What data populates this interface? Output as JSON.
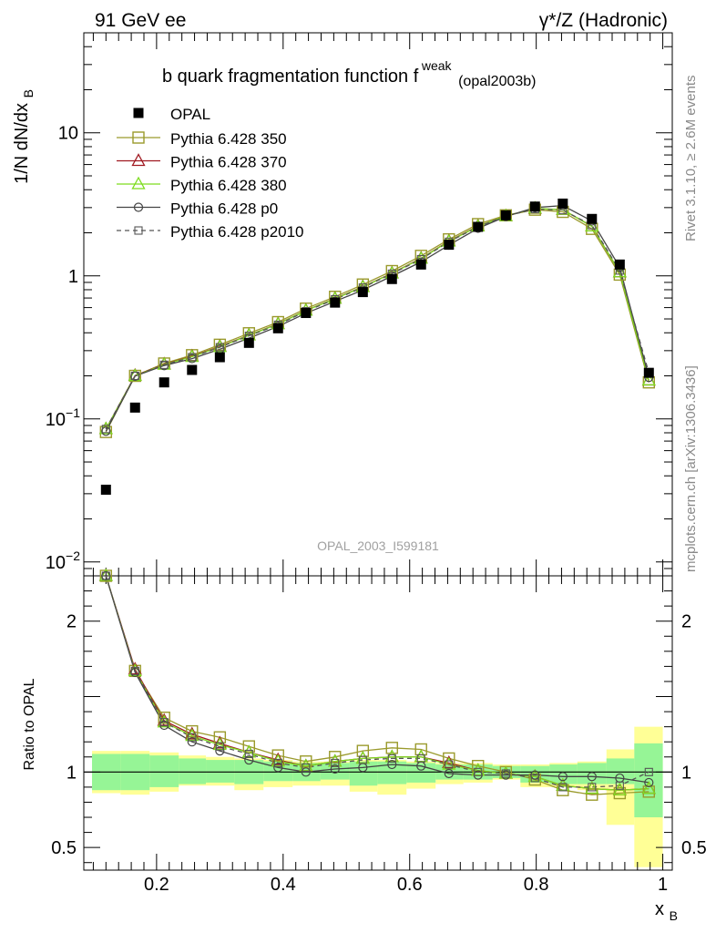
{
  "header": {
    "left": "91 GeV ee",
    "right": "γ*/Z (Hadronic)"
  },
  "side_labels": {
    "rivet": "Rivet 3.1.10, ≥ 2.6M events",
    "mcplots": "mcplots.cern.ch [arXiv:1306.3436]"
  },
  "watermark": "OPAL_2003_I599181",
  "chart_data": [
    {
      "type": "line",
      "title": "b quark fragmentation function f",
      "title_sup": "weak",
      "title_sub": "(opal2003b)",
      "ylabel": "1/N dN/dx",
      "ylabel_sub": "B",
      "yscale": "log",
      "ylim": [
        0.008,
        50
      ],
      "xlim": [
        0.085,
        1.015
      ],
      "y_ticks": [
        {
          "value": 10,
          "label": "10"
        },
        {
          "value": 1,
          "label": "1"
        },
        {
          "value": 0.1,
          "label": "10",
          "sup": "−1"
        },
        {
          "value": 0.01,
          "label": "10",
          "sup": "−2"
        }
      ],
      "legend_position": "top-left",
      "x": [
        0.12,
        0.166,
        0.212,
        0.256,
        0.3,
        0.346,
        0.392,
        0.436,
        0.482,
        0.526,
        0.572,
        0.618,
        0.662,
        0.708,
        0.752,
        0.798,
        0.842,
        0.888,
        0.932,
        0.978
      ],
      "data": {
        "name": "OPAL",
        "values": [
          0.032,
          0.12,
          0.18,
          0.22,
          0.27,
          0.34,
          0.43,
          0.55,
          0.65,
          0.77,
          0.95,
          1.2,
          1.65,
          2.2,
          2.65,
          3.05,
          3.2,
          2.5,
          1.2,
          0.21
        ]
      },
      "series": [
        {
          "name": "Pythia 6.428 350",
          "color": "#9a9a2c",
          "marker": "square-open",
          "dash": "solid",
          "values": [
            0.081,
            0.2,
            0.244,
            0.279,
            0.33,
            0.397,
            0.475,
            0.59,
            0.714,
            0.87,
            1.08,
            1.38,
            1.8,
            2.3,
            2.65,
            2.9,
            2.8,
            2.13,
            1.02,
            0.18
          ]
        },
        {
          "name": "Pythia 6.428 370",
          "color": "#a01820",
          "marker": "triangle-open",
          "dash": "solid",
          "values": [
            0.085,
            0.201,
            0.241,
            0.274,
            0.321,
            0.385,
            0.462,
            0.573,
            0.695,
            0.839,
            1.045,
            1.326,
            1.75,
            2.23,
            2.62,
            2.95,
            2.9,
            2.22,
            1.06,
            0.186
          ]
        },
        {
          "name": "Pythia 6.428 380",
          "color": "#7ddc1f",
          "marker": "triangle-open",
          "dash": "solid",
          "values": [
            0.085,
            0.2,
            0.24,
            0.272,
            0.319,
            0.384,
            0.46,
            0.572,
            0.693,
            0.836,
            1.04,
            1.32,
            1.74,
            2.22,
            2.62,
            2.96,
            2.9,
            2.22,
            1.06,
            0.186
          ]
        },
        {
          "name": "Pythia 6.428 p0",
          "color": "#444444",
          "marker": "circle-open",
          "dash": "solid",
          "values": [
            0.082,
            0.199,
            0.236,
            0.264,
            0.307,
            0.367,
            0.443,
            0.548,
            0.663,
            0.796,
            0.997,
            1.25,
            1.64,
            2.15,
            2.6,
            3.0,
            3.1,
            2.42,
            1.15,
            0.195
          ]
        },
        {
          "name": "Pythia 6.428 p2010",
          "color": "#555555",
          "marker": "square-open-small",
          "dash": "dashed",
          "values": [
            0.085,
            0.2,
            0.239,
            0.27,
            0.317,
            0.381,
            0.455,
            0.566,
            0.686,
            0.828,
            1.035,
            1.308,
            1.73,
            2.2,
            2.62,
            2.93,
            2.88,
            2.26,
            1.09,
            0.21
          ]
        }
      ]
    },
    {
      "type": "line",
      "ylabel": "Ratio to OPAL",
      "xlabel": "x",
      "xlabel_sub": "B",
      "xlim": [
        0.085,
        1.015
      ],
      "ylim": [
        0.35,
        2.3
      ],
      "x_ticks": [
        {
          "value": 0.2,
          "label": "0.2"
        },
        {
          "value": 0.4,
          "label": "0.4"
        },
        {
          "value": 0.6,
          "label": "0.6"
        },
        {
          "value": 0.8,
          "label": "0.8"
        },
        {
          "value": 1.0,
          "label": "1"
        }
      ],
      "y_ticks": [
        {
          "value": 2,
          "label": "2"
        },
        {
          "value": 1,
          "label": "1"
        },
        {
          "value": 0.5,
          "label": "0.5"
        }
      ],
      "reference_line": 1,
      "band_x_edges": [
        0.098,
        0.143,
        0.189,
        0.235,
        0.278,
        0.323,
        0.369,
        0.415,
        0.459,
        0.505,
        0.549,
        0.595,
        0.641,
        0.685,
        0.731,
        0.775,
        0.821,
        0.865,
        0.911,
        0.955,
        1.0
      ],
      "band_stat": {
        "lo": [
          0.88,
          0.88,
          0.9,
          0.92,
          0.93,
          0.92,
          0.94,
          0.94,
          0.95,
          0.91,
          0.92,
          0.93,
          0.95,
          0.95,
          0.96,
          0.93,
          0.92,
          0.92,
          0.92,
          0.7
        ],
        "hi": [
          1.12,
          1.12,
          1.11,
          1.09,
          1.08,
          1.08,
          1.07,
          1.06,
          1.06,
          1.07,
          1.07,
          1.06,
          1.05,
          1.05,
          1.04,
          1.04,
          1.05,
          1.06,
          1.09,
          1.19
        ]
      },
      "band_total": {
        "lo": [
          0.86,
          0.85,
          0.87,
          0.91,
          0.91,
          0.88,
          0.9,
          0.91,
          0.91,
          0.87,
          0.85,
          0.89,
          0.92,
          0.93,
          0.95,
          0.9,
          0.9,
          0.88,
          0.65,
          0.37
        ],
        "hi": [
          1.14,
          1.14,
          1.13,
          1.11,
          1.1,
          1.09,
          1.08,
          1.07,
          1.07,
          1.08,
          1.08,
          1.07,
          1.06,
          1.06,
          1.05,
          1.05,
          1.06,
          1.07,
          1.15,
          1.3
        ]
      },
      "series": [
        {
          "name": "Pythia 6.428 350",
          "values": [
            2.55,
            1.67,
            1.36,
            1.27,
            1.23,
            1.17,
            1.11,
            1.07,
            1.1,
            1.14,
            1.16,
            1.15,
            1.09,
            1.04,
            1.0,
            0.95,
            0.88,
            0.85,
            0.86,
            0.87
          ]
        },
        {
          "name": "Pythia 6.428 370",
          "values": [
            2.65,
            1.68,
            1.34,
            1.25,
            1.19,
            1.13,
            1.08,
            1.04,
            1.07,
            1.09,
            1.1,
            1.1,
            1.06,
            1.01,
            0.99,
            0.97,
            0.91,
            0.89,
            0.88,
            0.89
          ]
        },
        {
          "name": "Pythia 6.428 380",
          "values": [
            2.65,
            1.67,
            1.33,
            1.24,
            1.18,
            1.13,
            1.07,
            1.04,
            1.07,
            1.09,
            1.1,
            1.1,
            1.05,
            1.01,
            0.99,
            0.97,
            0.91,
            0.89,
            0.88,
            0.89
          ]
        },
        {
          "name": "Pythia 6.428 p0",
          "values": [
            2.56,
            1.66,
            1.31,
            1.2,
            1.14,
            1.08,
            1.03,
            1.0,
            1.02,
            1.03,
            1.05,
            1.04,
            0.99,
            0.98,
            0.98,
            0.98,
            0.97,
            0.97,
            0.96,
            0.93
          ]
        },
        {
          "name": "Pythia 6.428 p2010",
          "values": [
            2.65,
            1.67,
            1.33,
            1.23,
            1.17,
            1.12,
            1.06,
            1.03,
            1.06,
            1.08,
            1.09,
            1.09,
            1.05,
            1.0,
            0.99,
            0.96,
            0.9,
            0.9,
            0.91,
            1.0
          ]
        }
      ]
    }
  ]
}
